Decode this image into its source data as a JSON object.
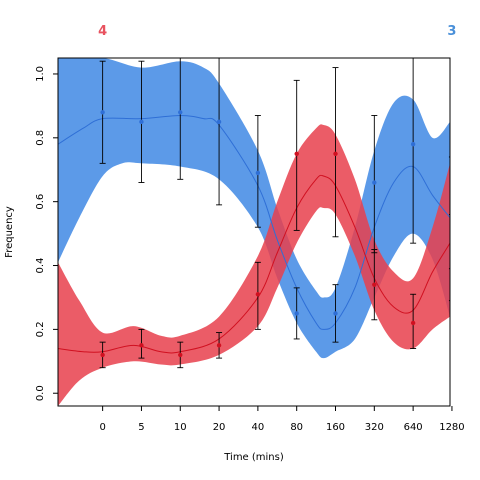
{
  "chart_data": {
    "type": "line",
    "title": "",
    "xlabel": "Time (mins)",
    "ylabel": "Frequency",
    "x_positions": [
      0,
      5,
      10,
      20,
      40,
      80,
      160,
      320,
      640,
      1280
    ],
    "x_tick_labels": [
      "0",
      "5",
      "10",
      "20",
      "40",
      "80",
      "160",
      "320",
      "640",
      "1280"
    ],
    "x_scale": "ordinal-log-like",
    "xlim_index": [
      -1.15,
      8.95
    ],
    "ylim": [
      -0.04,
      1.05
    ],
    "y_ticks": [
      0.0,
      0.2,
      0.4,
      0.6,
      0.8,
      1.0
    ],
    "y_tick_labels": [
      "0.0",
      "0.2",
      "0.4",
      "0.6",
      "0.8",
      "1.0"
    ],
    "legend_labels": [
      {
        "text": "4",
        "color": "#e8525f",
        "placement": "top-left"
      },
      {
        "text": "3",
        "color": "#4a90d9",
        "placement": "top-right"
      }
    ],
    "series": [
      {
        "name": "3",
        "color": "#2f6fd6",
        "band_color": "#4a8fe6",
        "points": [
          {
            "x": "0",
            "y": 0.88,
            "lo": 0.72,
            "hi": 1.04
          },
          {
            "x": "5",
            "y": 0.85,
            "lo": 0.66,
            "hi": 1.04
          },
          {
            "x": "10",
            "y": 0.88,
            "lo": 0.67,
            "hi": 1.06
          },
          {
            "x": "20",
            "y": 0.85,
            "lo": 0.59,
            "hi": 1.06
          },
          {
            "x": "40",
            "y": 0.69,
            "lo": 0.52,
            "hi": 0.87
          },
          {
            "x": "80",
            "y": 0.25,
            "lo": 0.17,
            "hi": 0.33
          },
          {
            "x": "160",
            "y": 0.25,
            "lo": 0.16,
            "hi": 0.34
          },
          {
            "x": "320",
            "y": 0.66,
            "lo": 0.44,
            "hi": 0.87
          },
          {
            "x": "640",
            "y": 0.78,
            "lo": 0.47,
            "hi": 1.06
          },
          {
            "x": "1280",
            "y": 0.57,
            "lo": 0.39,
            "hi": 0.74
          }
        ],
        "curve": [
          {
            "t": -1.15,
            "y": 0.78
          },
          {
            "t": -0.5,
            "y": 0.83
          },
          {
            "t": 0,
            "y": 0.86
          },
          {
            "t": 1,
            "y": 0.86
          },
          {
            "t": 2,
            "y": 0.87
          },
          {
            "t": 2.6,
            "y": 0.86
          },
          {
            "t": 3,
            "y": 0.84
          },
          {
            "t": 4,
            "y": 0.65
          },
          {
            "t": 4.5,
            "y": 0.48
          },
          {
            "t": 5,
            "y": 0.33
          },
          {
            "t": 5.5,
            "y": 0.22
          },
          {
            "t": 5.7,
            "y": 0.2
          },
          {
            "t": 6,
            "y": 0.22
          },
          {
            "t": 6.5,
            "y": 0.33
          },
          {
            "t": 7,
            "y": 0.52
          },
          {
            "t": 7.5,
            "y": 0.66
          },
          {
            "t": 8,
            "y": 0.71
          },
          {
            "t": 8.5,
            "y": 0.62
          },
          {
            "t": 8.95,
            "y": 0.55
          }
        ],
        "band_upper": [
          {
            "t": -1.15,
            "y": 1.05
          },
          {
            "t": 0,
            "y": 1.05
          },
          {
            "t": 1,
            "y": 1.02
          },
          {
            "t": 2,
            "y": 1.04
          },
          {
            "t": 2.6,
            "y": 1.02
          },
          {
            "t": 3,
            "y": 0.97
          },
          {
            "t": 4,
            "y": 0.76
          },
          {
            "t": 4.5,
            "y": 0.58
          },
          {
            "t": 5,
            "y": 0.42
          },
          {
            "t": 5.5,
            "y": 0.32
          },
          {
            "t": 5.7,
            "y": 0.3
          },
          {
            "t": 6,
            "y": 0.33
          },
          {
            "t": 6.5,
            "y": 0.52
          },
          {
            "t": 7,
            "y": 0.76
          },
          {
            "t": 7.5,
            "y": 0.91
          },
          {
            "t": 8,
            "y": 0.92
          },
          {
            "t": 8.5,
            "y": 0.8
          },
          {
            "t": 8.95,
            "y": 0.85
          }
        ],
        "band_lower": [
          {
            "t": -1.15,
            "y": 0.41
          },
          {
            "t": -0.6,
            "y": 0.55
          },
          {
            "t": 0,
            "y": 0.68
          },
          {
            "t": 0.5,
            "y": 0.72
          },
          {
            "t": 1,
            "y": 0.72
          },
          {
            "t": 2,
            "y": 0.71
          },
          {
            "t": 3,
            "y": 0.67
          },
          {
            "t": 4,
            "y": 0.52
          },
          {
            "t": 4.5,
            "y": 0.36
          },
          {
            "t": 5,
            "y": 0.22
          },
          {
            "t": 5.5,
            "y": 0.13
          },
          {
            "t": 5.7,
            "y": 0.11
          },
          {
            "t": 6,
            "y": 0.13
          },
          {
            "t": 6.5,
            "y": 0.17
          },
          {
            "t": 7,
            "y": 0.3
          },
          {
            "t": 7.5,
            "y": 0.43
          },
          {
            "t": 8,
            "y": 0.5
          },
          {
            "t": 8.5,
            "y": 0.42
          },
          {
            "t": 8.95,
            "y": 0.24
          }
        ]
      },
      {
        "name": "4",
        "color": "#d01020",
        "band_color": "#e8404c",
        "points": [
          {
            "x": "0",
            "y": 0.12,
            "lo": 0.08,
            "hi": 0.16
          },
          {
            "x": "5",
            "y": 0.15,
            "lo": 0.11,
            "hi": 0.2
          },
          {
            "x": "10",
            "y": 0.12,
            "lo": 0.08,
            "hi": 0.16
          },
          {
            "x": "20",
            "y": 0.15,
            "lo": 0.11,
            "hi": 0.19
          },
          {
            "x": "40",
            "y": 0.31,
            "lo": 0.2,
            "hi": 0.41
          },
          {
            "x": "80",
            "y": 0.75,
            "lo": 0.51,
            "hi": 0.98
          },
          {
            "x": "160",
            "y": 0.75,
            "lo": 0.49,
            "hi": 1.02
          },
          {
            "x": "320",
            "y": 0.34,
            "lo": 0.23,
            "hi": 0.45
          },
          {
            "x": "640",
            "y": 0.22,
            "lo": 0.14,
            "hi": 0.31
          },
          {
            "x": "1280",
            "y": 0.43,
            "lo": 0.29,
            "hi": 0.56
          }
        ],
        "curve": [
          {
            "t": -1.15,
            "y": 0.14
          },
          {
            "t": -0.5,
            "y": 0.13
          },
          {
            "t": 0,
            "y": 0.13
          },
          {
            "t": 0.8,
            "y": 0.15
          },
          {
            "t": 1.5,
            "y": 0.13
          },
          {
            "t": 2,
            "y": 0.13
          },
          {
            "t": 3,
            "y": 0.17
          },
          {
            "t": 4,
            "y": 0.3
          },
          {
            "t": 4.5,
            "y": 0.44
          },
          {
            "t": 5,
            "y": 0.58
          },
          {
            "t": 5.5,
            "y": 0.67
          },
          {
            "t": 5.7,
            "y": 0.68
          },
          {
            "t": 6,
            "y": 0.65
          },
          {
            "t": 6.5,
            "y": 0.52
          },
          {
            "t": 7,
            "y": 0.36
          },
          {
            "t": 7.5,
            "y": 0.27
          },
          {
            "t": 8,
            "y": 0.26
          },
          {
            "t": 8.5,
            "y": 0.38
          },
          {
            "t": 8.95,
            "y": 0.47
          }
        ],
        "band_upper": [
          {
            "t": -1.15,
            "y": 0.41
          },
          {
            "t": -0.6,
            "y": 0.29
          },
          {
            "t": 0,
            "y": 0.19
          },
          {
            "t": 0.8,
            "y": 0.21
          },
          {
            "t": 1.5,
            "y": 0.18
          },
          {
            "t": 2,
            "y": 0.18
          },
          {
            "t": 3,
            "y": 0.24
          },
          {
            "t": 4,
            "y": 0.43
          },
          {
            "t": 4.5,
            "y": 0.6
          },
          {
            "t": 5,
            "y": 0.75
          },
          {
            "t": 5.5,
            "y": 0.83
          },
          {
            "t": 5.7,
            "y": 0.84
          },
          {
            "t": 6,
            "y": 0.81
          },
          {
            "t": 6.5,
            "y": 0.67
          },
          {
            "t": 7,
            "y": 0.48
          },
          {
            "t": 7.5,
            "y": 0.38
          },
          {
            "t": 8,
            "y": 0.36
          },
          {
            "t": 8.5,
            "y": 0.52
          },
          {
            "t": 8.95,
            "y": 0.72
          }
        ],
        "band_lower": [
          {
            "t": -1.15,
            "y": -0.04
          },
          {
            "t": -0.6,
            "y": 0.04
          },
          {
            "t": 0,
            "y": 0.08
          },
          {
            "t": 0.8,
            "y": 0.1
          },
          {
            "t": 1.5,
            "y": 0.09
          },
          {
            "t": 2,
            "y": 0.09
          },
          {
            "t": 3,
            "y": 0.12
          },
          {
            "t": 4,
            "y": 0.21
          },
          {
            "t": 4.5,
            "y": 0.33
          },
          {
            "t": 5,
            "y": 0.47
          },
          {
            "t": 5.5,
            "y": 0.57
          },
          {
            "t": 5.7,
            "y": 0.58
          },
          {
            "t": 6,
            "y": 0.56
          },
          {
            "t": 6.5,
            "y": 0.43
          },
          {
            "t": 7,
            "y": 0.26
          },
          {
            "t": 7.5,
            "y": 0.16
          },
          {
            "t": 8,
            "y": 0.14
          },
          {
            "t": 8.5,
            "y": 0.2
          },
          {
            "t": 8.95,
            "y": 0.24
          }
        ]
      }
    ]
  }
}
